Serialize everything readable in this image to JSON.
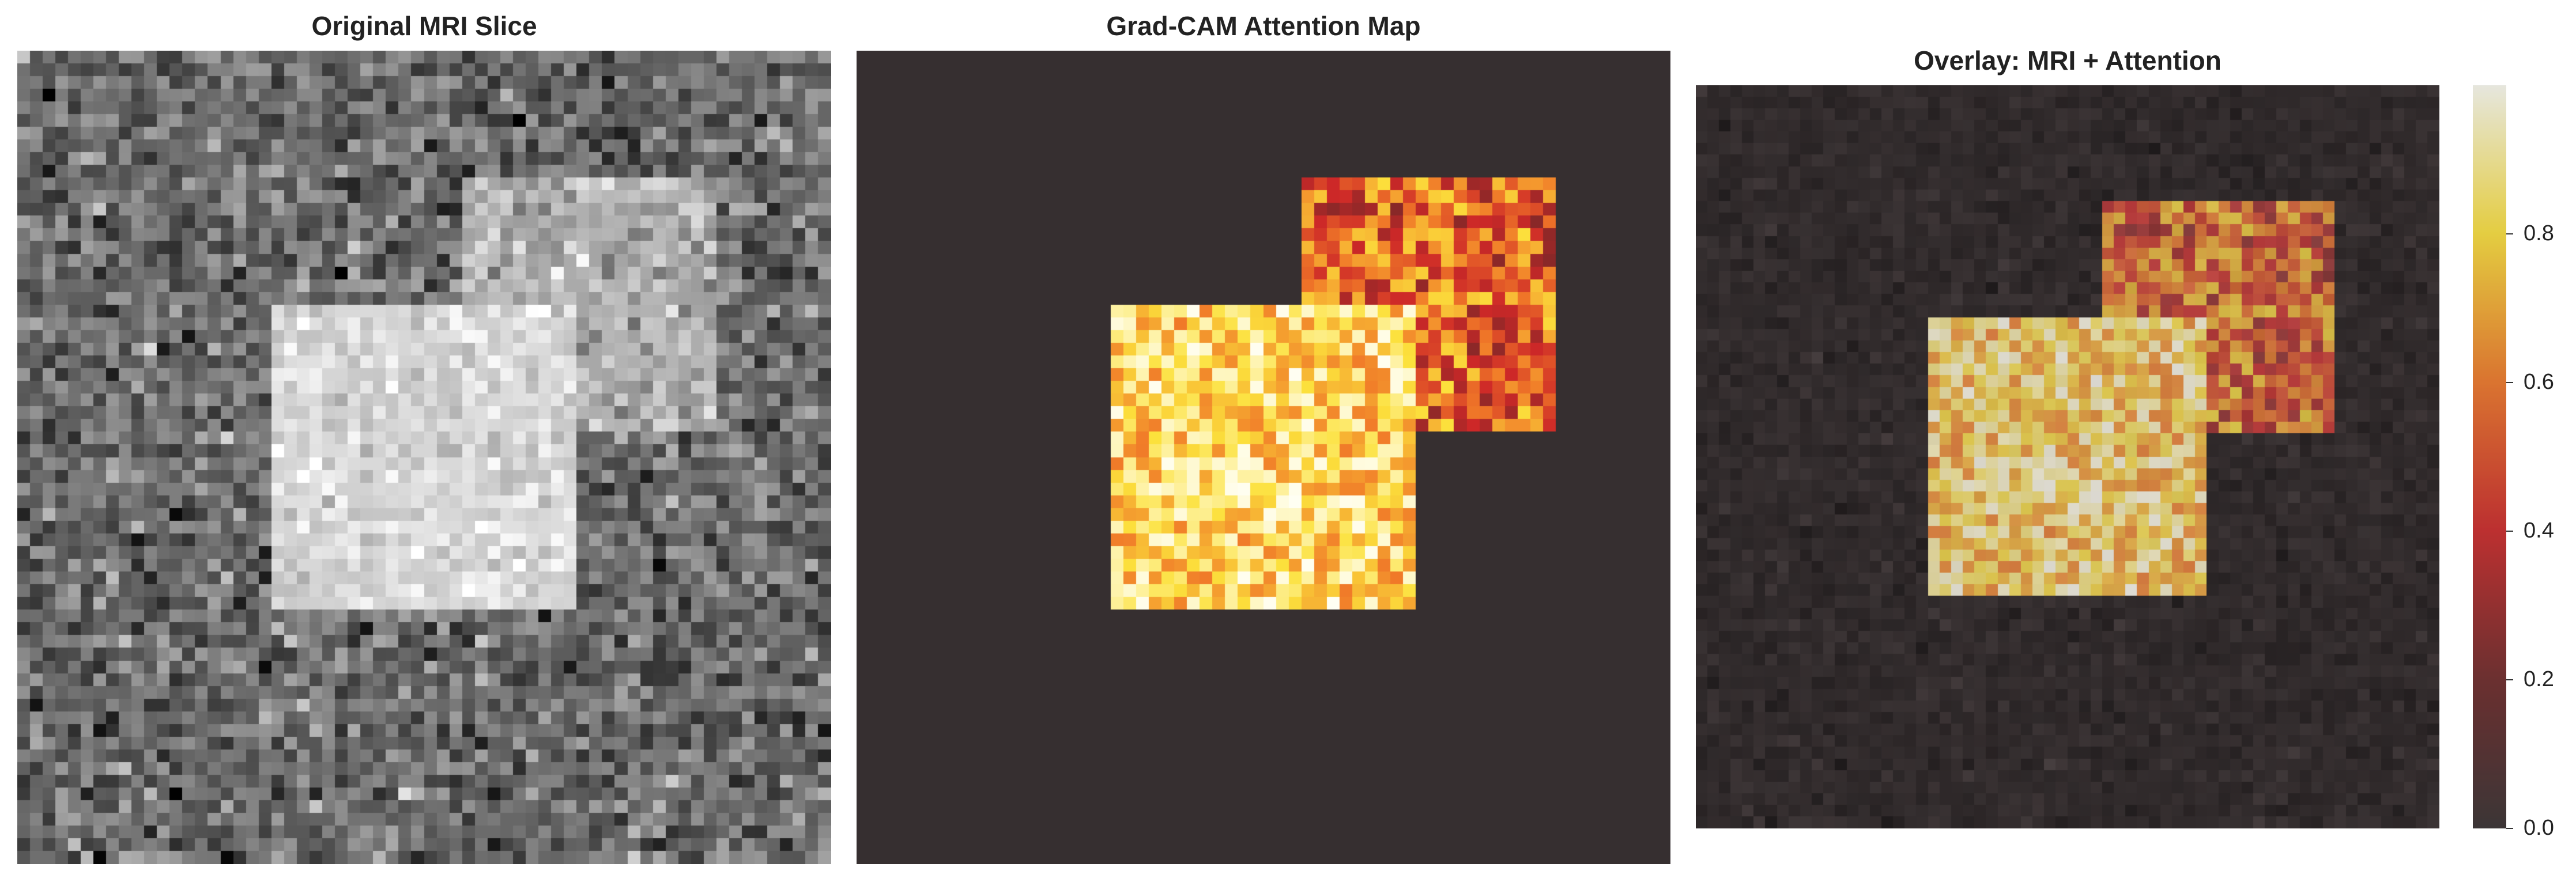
{
  "panels": [
    {
      "title": "Original MRI Slice"
    },
    {
      "title": "Grad-CAM Attention Map"
    },
    {
      "title": "Overlay: MRI + Attention"
    }
  ],
  "colorbar": {
    "colormap": "hot-like (dark → red → orange → yellow → white)",
    "range": [
      0.0,
      1.0
    ],
    "ticks": [
      "0.0",
      "0.2",
      "0.4",
      "0.6",
      "0.8"
    ]
  },
  "colors": {
    "attention_background": "#362f30",
    "overlay_background": "#2a2627"
  }
}
